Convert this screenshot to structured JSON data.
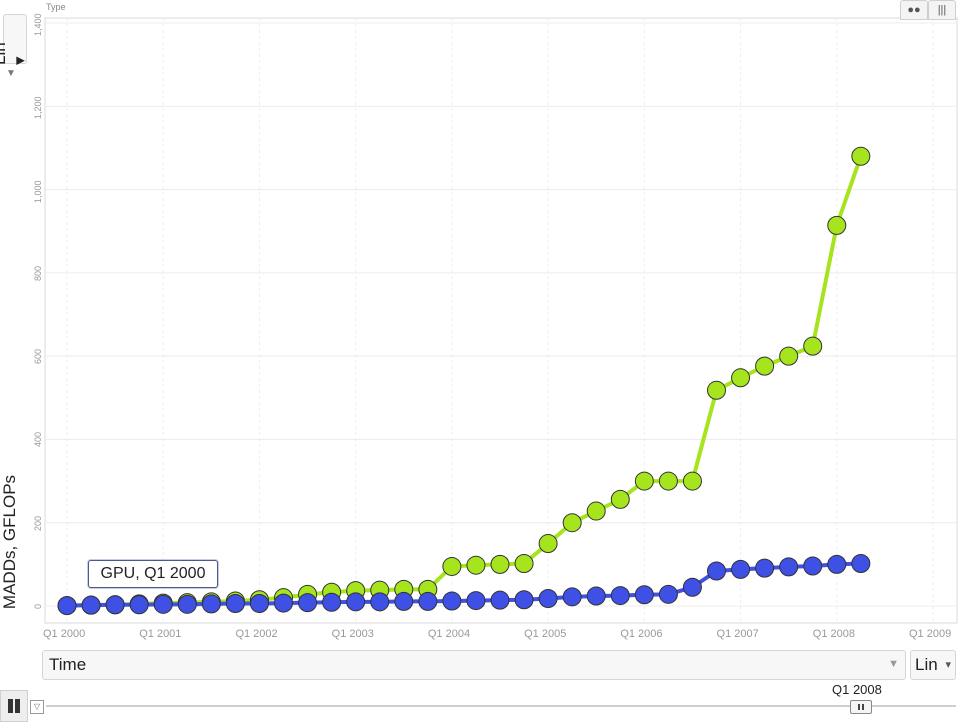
{
  "header": {
    "color_label": "Type",
    "chart_toggle_icons": [
      "bubble-chart-icon",
      "bar-chart-icon"
    ]
  },
  "y_axis_control": {
    "scale": "Lin",
    "dropdown_icon": "chevron-down-icon"
  },
  "x_axis_control": {
    "selector": "Time",
    "scale": "Lin",
    "dropdown_icon": "chevron-down-icon"
  },
  "tooltip": {
    "text": "GPU, Q1 2000"
  },
  "playback": {
    "button_icon": "pause-icon",
    "trail_icon": "trails-icon",
    "current_time": "Q1 2008"
  },
  "chart_data": {
    "type": "line",
    "xlabel": "Time",
    "ylabel": "MADDs, GFLOPs",
    "ylim": [
      0,
      1400
    ],
    "yticks": [
      "0",
      "200",
      "400",
      "600",
      "800",
      "1,000",
      "1,200",
      "1,400"
    ],
    "xticks": [
      "Q1 2000",
      "Q1 2001",
      "Q1 2002",
      "Q1 2003",
      "Q1 2004",
      "Q1 2005",
      "Q1 2006",
      "Q1 2007",
      "Q1 2008",
      "Q1 2009"
    ],
    "xlim": [
      "Q1 2000",
      "Q1 2009"
    ],
    "grid": true,
    "series": [
      {
        "color": "#a6e51e",
        "points": [
          [
            "Q1 2000",
            1
          ],
          [
            "Q2 2000",
            2
          ],
          [
            "Q3 2000",
            3
          ],
          [
            "Q4 2000",
            5
          ],
          [
            "Q1 2001",
            7
          ],
          [
            "Q2 2001",
            8
          ],
          [
            "Q3 2001",
            10
          ],
          [
            "Q4 2001",
            12
          ],
          [
            "Q1 2002",
            15
          ],
          [
            "Q2 2002",
            20
          ],
          [
            "Q3 2002",
            28
          ],
          [
            "Q4 2002",
            33
          ],
          [
            "Q1 2003",
            37
          ],
          [
            "Q2 2003",
            38
          ],
          [
            "Q3 2003",
            40
          ],
          [
            "Q4 2003",
            40
          ],
          [
            "Q1 2004",
            95
          ],
          [
            "Q2 2004",
            98
          ],
          [
            "Q3 2004",
            100
          ],
          [
            "Q4 2004",
            102
          ],
          [
            "Q1 2005",
            150
          ],
          [
            "Q2 2005",
            200
          ],
          [
            "Q3 2005",
            228
          ],
          [
            "Q4 2005",
            256
          ],
          [
            "Q1 2006",
            300
          ],
          [
            "Q2 2006",
            300
          ],
          [
            "Q3 2006",
            300
          ],
          [
            "Q4 2006",
            518
          ],
          [
            "Q1 2007",
            548
          ],
          [
            "Q2 2007",
            576
          ],
          [
            "Q3 2007",
            600
          ],
          [
            "Q4 2007",
            624
          ],
          [
            "Q1 2008",
            914
          ],
          [
            "Q2 2008",
            1080
          ]
        ]
      },
      {
        "color": "#3f51e4",
        "points": [
          [
            "Q1 2000",
            1
          ],
          [
            "Q2 2000",
            2
          ],
          [
            "Q3 2000",
            3
          ],
          [
            "Q4 2000",
            3
          ],
          [
            "Q1 2001",
            4
          ],
          [
            "Q2 2001",
            4
          ],
          [
            "Q3 2001",
            5
          ],
          [
            "Q4 2001",
            6
          ],
          [
            "Q1 2002",
            6
          ],
          [
            "Q2 2002",
            7
          ],
          [
            "Q3 2002",
            8
          ],
          [
            "Q4 2002",
            9
          ],
          [
            "Q1 2003",
            10
          ],
          [
            "Q2 2003",
            10
          ],
          [
            "Q3 2003",
            11
          ],
          [
            "Q4 2003",
            11
          ],
          [
            "Q1 2004",
            12
          ],
          [
            "Q2 2004",
            13
          ],
          [
            "Q3 2004",
            14
          ],
          [
            "Q4 2004",
            15
          ],
          [
            "Q1 2005",
            18
          ],
          [
            "Q2 2005",
            22
          ],
          [
            "Q3 2005",
            24
          ],
          [
            "Q4 2005",
            25
          ],
          [
            "Q1 2006",
            27
          ],
          [
            "Q2 2006",
            28
          ],
          [
            "Q3 2006",
            45
          ],
          [
            "Q4 2006",
            84
          ],
          [
            "Q1 2007",
            88
          ],
          [
            "Q2 2007",
            91
          ],
          [
            "Q3 2007",
            94
          ],
          [
            "Q4 2007",
            96
          ],
          [
            "Q1 2008",
            100
          ],
          [
            "Q2 2008",
            102
          ]
        ]
      }
    ]
  }
}
